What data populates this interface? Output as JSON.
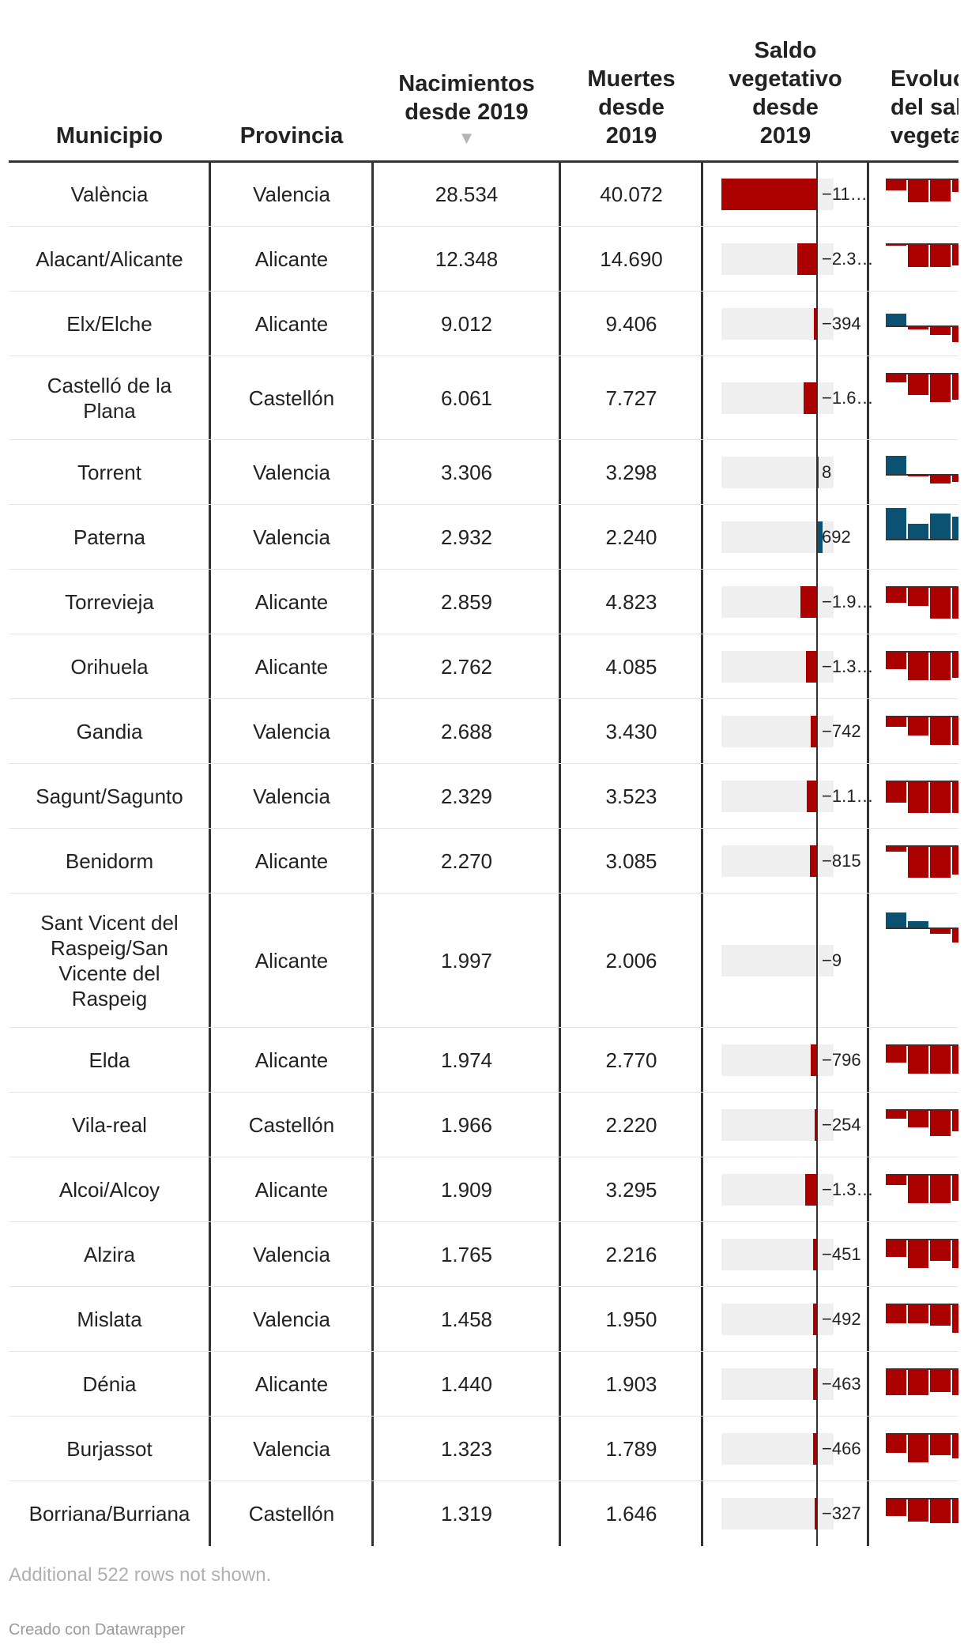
{
  "chart_data": {
    "type": "table",
    "columns": [
      "Municipio",
      "Provincia",
      "Nacimientos desde 2019",
      "Muertes desde 2019",
      "Saldo vegetativo desde 2019",
      "Evolución del saldo vegetativo"
    ],
    "header_lines": {
      "municipio": [
        "Municipio"
      ],
      "provincia": [
        "Provincia"
      ],
      "nacimientos": [
        "Nacimientos",
        "desde 2019"
      ],
      "muertes": [
        "Muertes",
        "desde",
        "2019"
      ],
      "saldo": [
        "Saldo",
        "vegetativo",
        "desde",
        "2019"
      ],
      "evolucion": [
        "Evoluc",
        "del sal",
        "vegeta"
      ]
    },
    "sort_icon": "▼",
    "sorted_by": "Nacimientos desde 2019",
    "saldo_range": [
      -11538,
      2000
    ],
    "evolucion_series_length": 4,
    "colors": {
      "negative": "#aa0000",
      "positive": "#0a5172",
      "bar_background": "#efefef",
      "rule": "#333333"
    },
    "rows": [
      {
        "municipio": "València",
        "provincia": "Valencia",
        "nacimientos": "28.534",
        "muertes": "40.072",
        "saldo": -11538,
        "saldo_label": "−11…",
        "evolucion": [
          -3.2,
          -6.5,
          -6.4,
          -3.5
        ]
      },
      {
        "municipio": "Alacant/Alicante",
        "provincia": "Alicante",
        "nacimientos": "12.348",
        "muertes": "14.690",
        "saldo": -2342,
        "saldo_label": "−2.3…",
        "evolucion": [
          -0.5,
          -6.5,
          -6.5,
          -6.0
        ]
      },
      {
        "municipio": "Elx/Elche",
        "provincia": "Alicante",
        "nacimientos": "9.012",
        "muertes": "9.406",
        "saldo": -394,
        "saldo_label": "−394",
        "evolucion": [
          3.5,
          -1.0,
          -2.5,
          -4.5
        ]
      },
      {
        "municipio": "Castelló de la Plana",
        "provincia": "Castellón",
        "nacimientos": "6.061",
        "muertes": "7.727",
        "saldo": -1666,
        "saldo_label": "−1.6…",
        "evolucion": [
          -2.5,
          -6.0,
          -8.0,
          -7.5
        ]
      },
      {
        "municipio": "Torrent",
        "provincia": "Valencia",
        "nacimientos": "3.306",
        "muertes": "3.298",
        "saldo": 8,
        "saldo_label": "8",
        "evolucion": [
          5.5,
          -0.5,
          -2.5,
          -2.0
        ]
      },
      {
        "municipio": "Paterna",
        "provincia": "Valencia",
        "nacimientos": "2.932",
        "muertes": "2.240",
        "saldo": 692,
        "saldo_label": "692",
        "evolucion": [
          9.0,
          4.5,
          7.5,
          6.5
        ]
      },
      {
        "municipio": "Torrevieja",
        "provincia": "Alicante",
        "nacimientos": "2.859",
        "muertes": "4.823",
        "saldo": -1964,
        "saldo_label": "−1.9…",
        "evolucion": [
          -4.5,
          -5.5,
          -9.0,
          -9.0
        ]
      },
      {
        "municipio": "Orihuela",
        "provincia": "Alicante",
        "nacimientos": "2.762",
        "muertes": "4.085",
        "saldo": -1323,
        "saldo_label": "−1.3…",
        "evolucion": [
          -5.0,
          -8.0,
          -8.0,
          -7.5
        ]
      },
      {
        "municipio": "Gandia",
        "provincia": "Valencia",
        "nacimientos": "2.688",
        "muertes": "3.430",
        "saldo": -742,
        "saldo_label": "−742",
        "evolucion": [
          -3.0,
          -5.5,
          -8.0,
          -8.0
        ]
      },
      {
        "municipio": "Sagunt/Sagunto",
        "provincia": "Valencia",
        "nacimientos": "2.329",
        "muertes": "3.523",
        "saldo": -1194,
        "saldo_label": "−1.1…",
        "evolucion": [
          -6.0,
          -9.0,
          -9.0,
          -9.0
        ]
      },
      {
        "municipio": "Benidorm",
        "provincia": "Alicante",
        "nacimientos": "2.270",
        "muertes": "3.085",
        "saldo": -815,
        "saldo_label": "−815",
        "evolucion": [
          -1.5,
          -9.0,
          -9.0,
          -8.0
        ]
      },
      {
        "municipio": "Sant Vicent del Raspeig/San Vicente del Raspeig",
        "provincia": "Alicante",
        "nacimientos": "1.997",
        "muertes": "2.006",
        "saldo": -9,
        "saldo_label": "−9",
        "evolucion": [
          4.5,
          2.0,
          -1.5,
          -4.0
        ]
      },
      {
        "municipio": "Elda",
        "provincia": "Alicante",
        "nacimientos": "1.974",
        "muertes": "2.770",
        "saldo": -796,
        "saldo_label": "−796",
        "evolucion": [
          -5.0,
          -8.0,
          -8.0,
          -8.0
        ]
      },
      {
        "municipio": "Vila-real",
        "provincia": "Castellón",
        "nacimientos": "1.966",
        "muertes": "2.220",
        "saldo": -254,
        "saldo_label": "−254",
        "evolucion": [
          -2.5,
          -5.0,
          -7.5,
          -6.0
        ]
      },
      {
        "municipio": "Alcoi/Alcoy",
        "provincia": "Alicante",
        "nacimientos": "1.909",
        "muertes": "3.295",
        "saldo": -1386,
        "saldo_label": "−1.3…",
        "evolucion": [
          -3.0,
          -8.0,
          -8.0,
          -7.5
        ]
      },
      {
        "municipio": "Alzira",
        "provincia": "Valencia",
        "nacimientos": "1.765",
        "muertes": "2.216",
        "saldo": -451,
        "saldo_label": "−451",
        "evolucion": [
          -5.0,
          -8.0,
          -6.0,
          -8.0
        ]
      },
      {
        "municipio": "Mislata",
        "provincia": "Valencia",
        "nacimientos": "1.458",
        "muertes": "1.950",
        "saldo": -492,
        "saldo_label": "−492",
        "evolucion": [
          -5.5,
          -5.5,
          -6.0,
          -8.0
        ]
      },
      {
        "municipio": "Dénia",
        "provincia": "Alicante",
        "nacimientos": "1.440",
        "muertes": "1.903",
        "saldo": -463,
        "saldo_label": "−463",
        "evolucion": [
          -7.5,
          -7.5,
          -6.5,
          -7.5
        ]
      },
      {
        "municipio": "Burjassot",
        "provincia": "Valencia",
        "nacimientos": "1.323",
        "muertes": "1.789",
        "saldo": -466,
        "saldo_label": "−466",
        "evolucion": [
          -5.5,
          -8.0,
          -6.0,
          -7.0
        ]
      },
      {
        "municipio": "Borriana/Burriana",
        "provincia": "Castellón",
        "nacimientos": "1.319",
        "muertes": "1.646",
        "saldo": -327,
        "saldo_label": "−327",
        "evolucion": [
          -5.0,
          -6.5,
          -7.0,
          -7.0
        ]
      }
    ]
  },
  "footer": {
    "note": "Additional 522 rows not shown.",
    "credit": "Creado con Datawrapper"
  }
}
